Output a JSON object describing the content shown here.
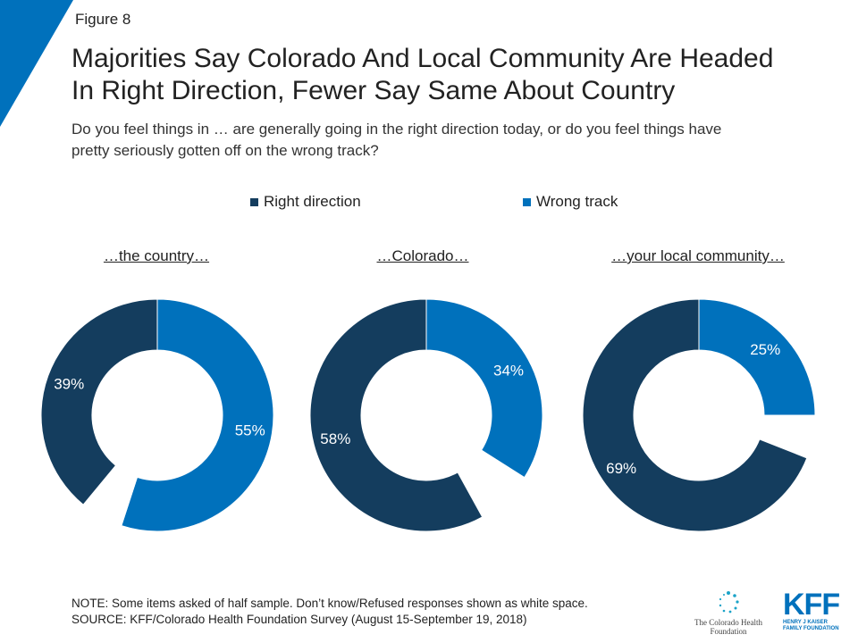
{
  "figure_label": "Figure 8",
  "title_lines": [
    "Majorities Say Colorado And Local Community Are Headed",
    "In Right Direction, Fewer Say Same About Country"
  ],
  "subtitle_lines": [
    "Do you feel things in … are generally going in the right direction today, or do you feel things have",
    "pretty seriously gotten off on the wrong track?"
  ],
  "colors": {
    "right_direction": "#143d5e",
    "wrong_track": "#0071bc",
    "dont_know": "#ffffff",
    "corner_accent": "#0071bc"
  },
  "chart_data": {
    "type": "pie",
    "variant": "donut",
    "legend": [
      "Right direction",
      "Wrong track"
    ],
    "legend_position": "top",
    "charts": [
      {
        "label": "…the country…",
        "slices": [
          {
            "name": "Wrong track",
            "value": 55,
            "label": "55%"
          },
          {
            "name": "Don't know/Refused",
            "value": 6,
            "label": ""
          },
          {
            "name": "Right direction",
            "value": 39,
            "label": "39%"
          }
        ]
      },
      {
        "label": "…Colorado…",
        "slices": [
          {
            "name": "Wrong track",
            "value": 34,
            "label": "34%"
          },
          {
            "name": "Don't know/Refused",
            "value": 8,
            "label": ""
          },
          {
            "name": "Right direction",
            "value": 58,
            "label": "58%"
          }
        ]
      },
      {
        "label": "…your local community…",
        "slices": [
          {
            "name": "Wrong track",
            "value": 25,
            "label": "25%"
          },
          {
            "name": "Don't know/Refused",
            "value": 6,
            "label": ""
          },
          {
            "name": "Right direction",
            "value": 69,
            "label": "69%"
          }
        ]
      }
    ]
  },
  "footer": {
    "note": "NOTE: Some items asked of half sample. Don’t know/Refused responses shown as white space.",
    "source": "SOURCE: KFF/Colorado Health Foundation Survey (August 15-September 19, 2018)"
  },
  "logos": {
    "chf": "The Colorado Health Foundation",
    "kff_mark": "KFF",
    "kff_sub_1": "HENRY J KAISER",
    "kff_sub_2": "FAMILY FOUNDATION"
  }
}
